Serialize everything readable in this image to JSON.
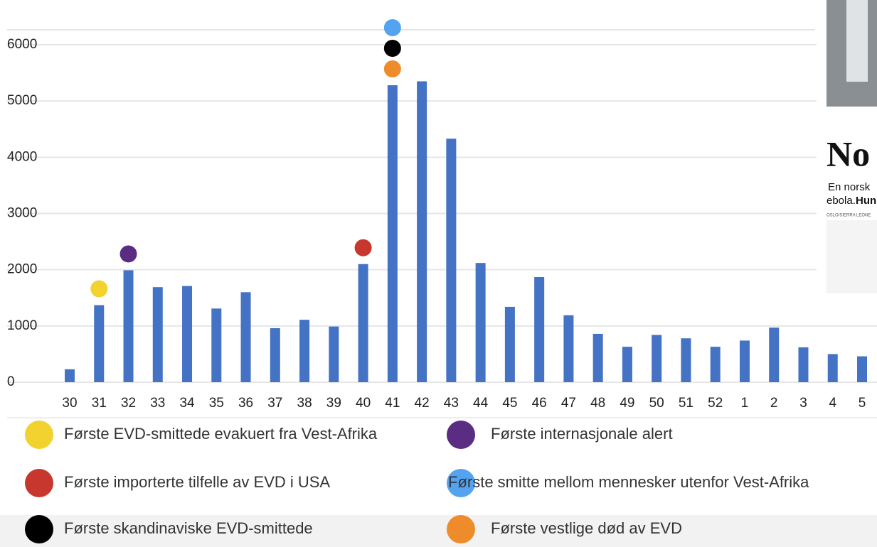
{
  "chart_data": {
    "type": "bar",
    "categories": [
      "30",
      "31",
      "32",
      "33",
      "34",
      "35",
      "36",
      "37",
      "38",
      "39",
      "40",
      "41",
      "42",
      "43",
      "44",
      "45",
      "46",
      "47",
      "48",
      "49",
      "50",
      "51",
      "52",
      "1",
      "2",
      "3",
      "4",
      "5"
    ],
    "values": [
      230,
      1370,
      1990,
      1690,
      1710,
      1310,
      1600,
      960,
      1110,
      990,
      2100,
      5280,
      5350,
      4330,
      2120,
      1340,
      1870,
      1190,
      860,
      630,
      840,
      780,
      630,
      740,
      970,
      620,
      500,
      460
    ],
    "color": "#4472c4",
    "ylim": [
      0,
      6500
    ],
    "yticks": [
      0,
      1000,
      2000,
      3000,
      4000,
      5000,
      6000
    ],
    "grid": true,
    "events": [
      {
        "label": "Første EVD-smittede evakuert fra Vest-Afrika",
        "color": "#f2d22e",
        "category": "31"
      },
      {
        "label": "Første internasjonale alert",
        "color": "#5b2d82",
        "category": "32"
      },
      {
        "label": "Første importerte tilfelle av EVD i USA",
        "color": "#c8372d",
        "category": "40"
      },
      {
        "label": "Første smitte mellom mennesker utenfor Vest-Afrika",
        "color": "#54a3f0",
        "category": "41"
      },
      {
        "label": "Første skandinaviske EVD-smittede",
        "color": "#000000",
        "category": "41"
      },
      {
        "label": "Første vestlige død av EVD",
        "color": "#ee8c2c",
        "category": "41"
      }
    ]
  },
  "inset": {
    "headline": "No",
    "lead": "En norsk",
    "lead2": "ebola.",
    "lead2_bold": "Hun",
    "dateline": "OSLO/SIERRA LEONE"
  }
}
